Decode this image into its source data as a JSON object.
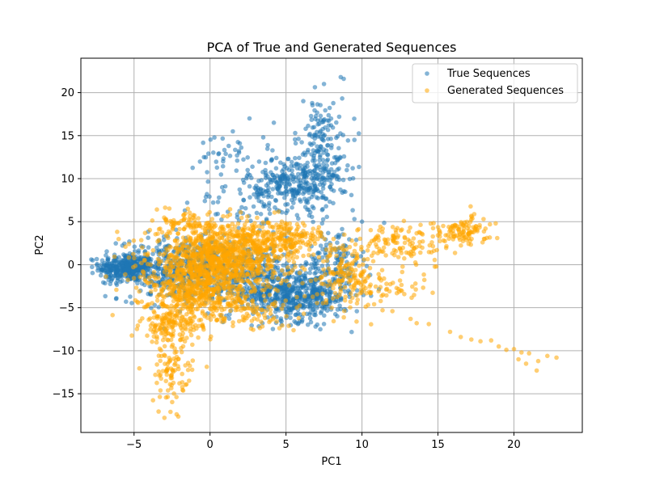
{
  "chart_data": {
    "type": "scatter",
    "title": "PCA of True and Generated Sequences",
    "xlabel": "PC1",
    "ylabel": "PC2",
    "xlim": [
      -8.5,
      24.5
    ],
    "ylim": [
      -19.5,
      24.0
    ],
    "xticks": [
      -5,
      0,
      5,
      10,
      15,
      20
    ],
    "yticks": [
      -15,
      -10,
      -5,
      0,
      5,
      10,
      15,
      20
    ],
    "xtick_labels": [
      "−5",
      "0",
      "5",
      "10",
      "15",
      "20"
    ],
    "ytick_labels": [
      "−15",
      "−10",
      "−5",
      "0",
      "5",
      "10",
      "15",
      "20"
    ],
    "grid": true,
    "legend_position": "top-right",
    "series": [
      {
        "name": "True Sequences",
        "color": "#1f77b4",
        "clusters": [
          {
            "cx": -5.5,
            "cy": -0.3,
            "sx": 0.9,
            "sy": 0.8,
            "n": 350
          },
          {
            "cx": -2.0,
            "cy": -0.5,
            "sx": 2.0,
            "sy": 1.8,
            "n": 450
          },
          {
            "cx": 2.5,
            "cy": -1.5,
            "sx": 2.0,
            "sy": 2.0,
            "n": 350
          },
          {
            "cx": 6.0,
            "cy": -3.5,
            "sx": 1.6,
            "sy": 1.5,
            "n": 500
          },
          {
            "cx": 5.5,
            "cy": 9.5,
            "sx": 1.5,
            "sy": 1.6,
            "n": 300
          },
          {
            "cx": 7.3,
            "cy": 13.5,
            "sx": 0.9,
            "sy": 3.0,
            "n": 170
          },
          {
            "cx": 1.0,
            "cy": 13.0,
            "sx": 0.8,
            "sy": 1.0,
            "n": 30
          },
          {
            "cx": 3.0,
            "cy": 7.0,
            "sx": 2.0,
            "sy": 1.8,
            "n": 60
          },
          {
            "cx": 8.2,
            "cy": 0.5,
            "sx": 0.9,
            "sy": 2.0,
            "n": 120
          }
        ],
        "points": [
          [
            -7.0,
            -0.7
          ],
          [
            -6.6,
            -0.5
          ],
          [
            8.6,
            21.8
          ],
          [
            8.8,
            21.6
          ],
          [
            7.5,
            21.0
          ],
          [
            2.6,
            17.0
          ],
          [
            1.5,
            15.5
          ],
          [
            -0.4,
            12.5
          ],
          [
            -1.5,
            7.2
          ],
          [
            10.0,
            5.0
          ],
          [
            9.5,
            5.3
          ],
          [
            -0.2,
            8.2
          ],
          [
            0.8,
            9.0
          ],
          [
            3.5,
            14.8
          ],
          [
            4.2,
            16.5
          ],
          [
            8.5,
            17.2
          ],
          [
            9.5,
            14.5
          ],
          [
            9.0,
            11.0
          ]
        ]
      },
      {
        "name": "Generated Sequences",
        "color": "#ffa500",
        "clusters": [
          {
            "cx": 0.5,
            "cy": 0.5,
            "sx": 2.2,
            "sy": 2.0,
            "n": 1100
          },
          {
            "cx": -1.0,
            "cy": -3.5,
            "sx": 1.5,
            "sy": 1.6,
            "n": 350
          },
          {
            "cx": -2.5,
            "cy": -7.0,
            "sx": 1.0,
            "sy": 1.0,
            "n": 150
          },
          {
            "cx": -2.5,
            "cy": -12.5,
            "sx": 0.7,
            "sy": 1.8,
            "n": 90
          },
          {
            "cx": 4.5,
            "cy": 3.0,
            "sx": 1.8,
            "sy": 1.0,
            "n": 250
          },
          {
            "cx": 9.0,
            "cy": -1.0,
            "sx": 1.0,
            "sy": 2.0,
            "n": 150
          },
          {
            "cx": 12.5,
            "cy": 2.5,
            "sx": 1.2,
            "sy": 1.0,
            "n": 110
          },
          {
            "cx": 16.5,
            "cy": 3.8,
            "sx": 0.9,
            "sy": 0.9,
            "n": 110
          },
          {
            "cx": 11.5,
            "cy": -2.5,
            "sx": 1.5,
            "sy": 1.0,
            "n": 60
          },
          {
            "cx": 2.5,
            "cy": -5.5,
            "sx": 1.6,
            "sy": 1.2,
            "n": 90
          },
          {
            "cx": -1.5,
            "cy": 5.0,
            "sx": 0.8,
            "sy": 0.7,
            "n": 60
          }
        ],
        "points": [
          [
            15.8,
            -7.8
          ],
          [
            16.5,
            -8.4
          ],
          [
            17.2,
            -8.7
          ],
          [
            17.8,
            -8.9
          ],
          [
            18.5,
            -8.8
          ],
          [
            19.0,
            -9.5
          ],
          [
            19.5,
            -9.9
          ],
          [
            20.0,
            -9.8
          ],
          [
            20.5,
            -10.2
          ],
          [
            21.0,
            -10.3
          ],
          [
            20.8,
            -11.5
          ],
          [
            21.5,
            -12.3
          ],
          [
            22.2,
            -10.6
          ],
          [
            22.8,
            -10.8
          ],
          [
            21.6,
            -11.2
          ],
          [
            20.3,
            -11.0
          ],
          [
            13.6,
            -6.8
          ],
          [
            14.4,
            -6.9
          ],
          [
            13.2,
            -6.3
          ],
          [
            12.0,
            -5.4
          ],
          [
            10.8,
            -4.6
          ],
          [
            18.0,
            5.3
          ],
          [
            18.8,
            4.8
          ],
          [
            18.9,
            3.1
          ],
          [
            14.0,
            2.7
          ],
          [
            14.6,
            2.6
          ],
          [
            -3.0,
            -17.8
          ],
          [
            -2.6,
            -17.1
          ],
          [
            -2.2,
            -17.4
          ],
          [
            -3.6,
            -12.8
          ]
        ]
      }
    ]
  }
}
